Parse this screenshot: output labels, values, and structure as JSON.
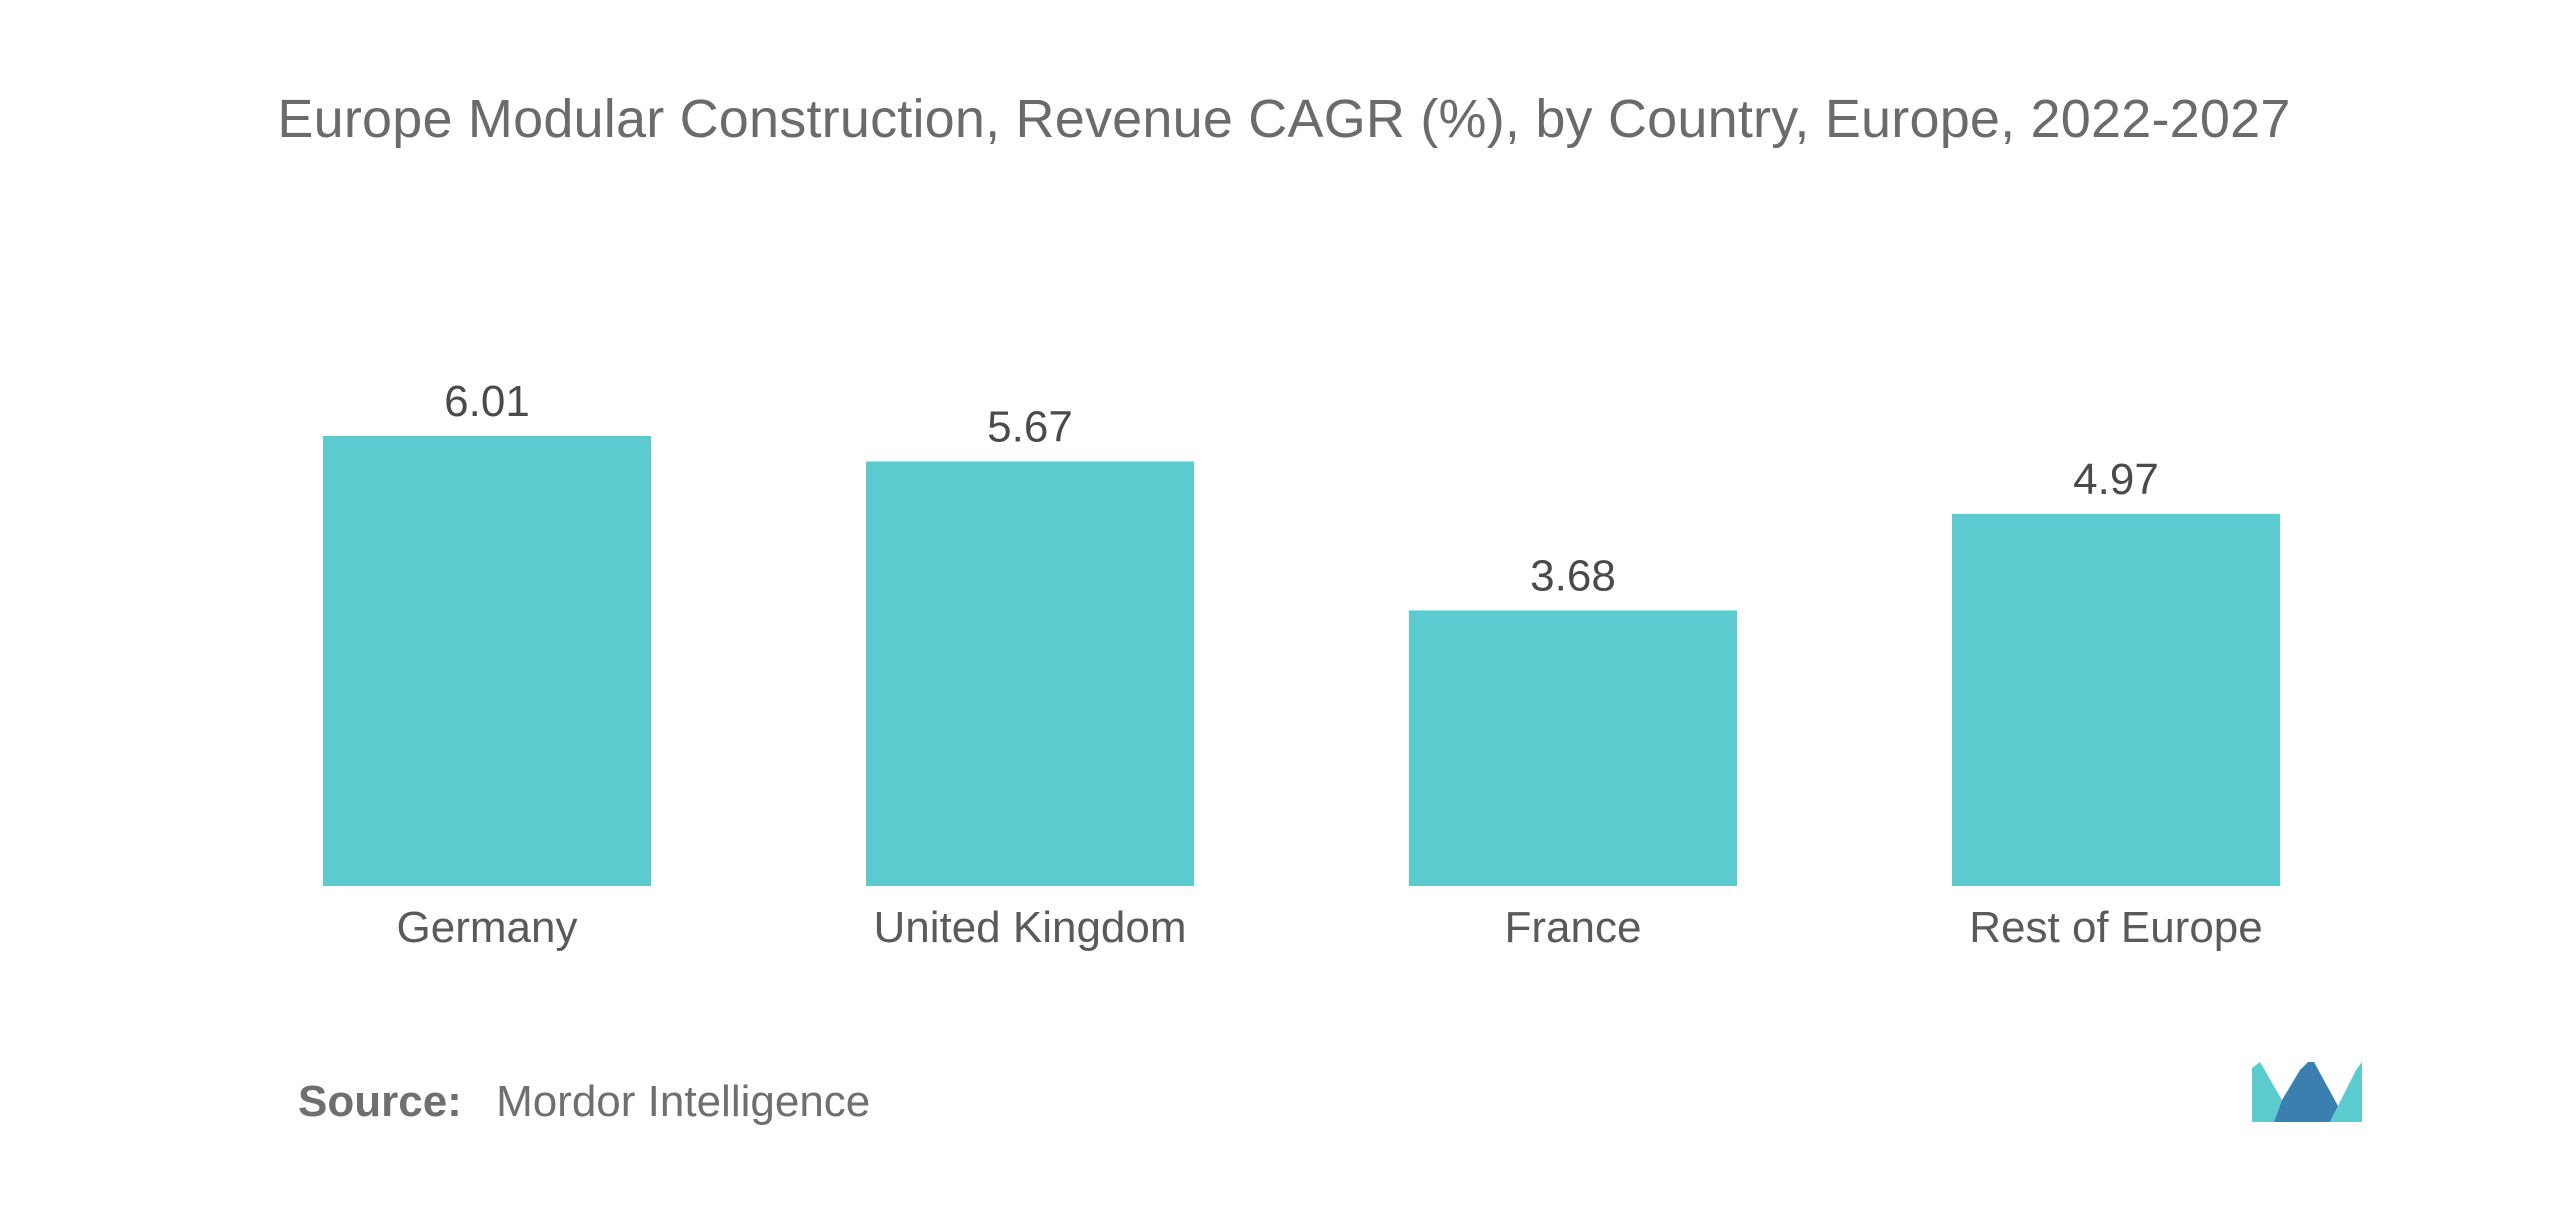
{
  "chart_data": {
    "type": "bar",
    "title": "Europe Modular Construction, Revenue CAGR (%), by Country, Europe, 2022-2027",
    "categories": [
      "Germany",
      "United Kingdom",
      "France",
      "Rest of Europe"
    ],
    "values": [
      6.01,
      5.67,
      3.68,
      4.97
    ],
    "value_labels": [
      "6.01",
      "5.67",
      "3.68",
      "4.97"
    ],
    "xlabel": "",
    "ylabel": "",
    "ylim": [
      0,
      6.01
    ],
    "grid": false,
    "legend": "none",
    "bar_color": "#5ccbcf"
  },
  "source": {
    "label": "Source:",
    "text": "Mordor Intelligence"
  },
  "logo": {
    "icon": "mordor-intelligence-logo-icon",
    "color_dark": "#3a7fb0",
    "color_light": "#5ccbcf"
  },
  "colors": {
    "title": "#6b6b6b",
    "value_label": "#4a4a4a",
    "category_label": "#5a5a5a"
  }
}
